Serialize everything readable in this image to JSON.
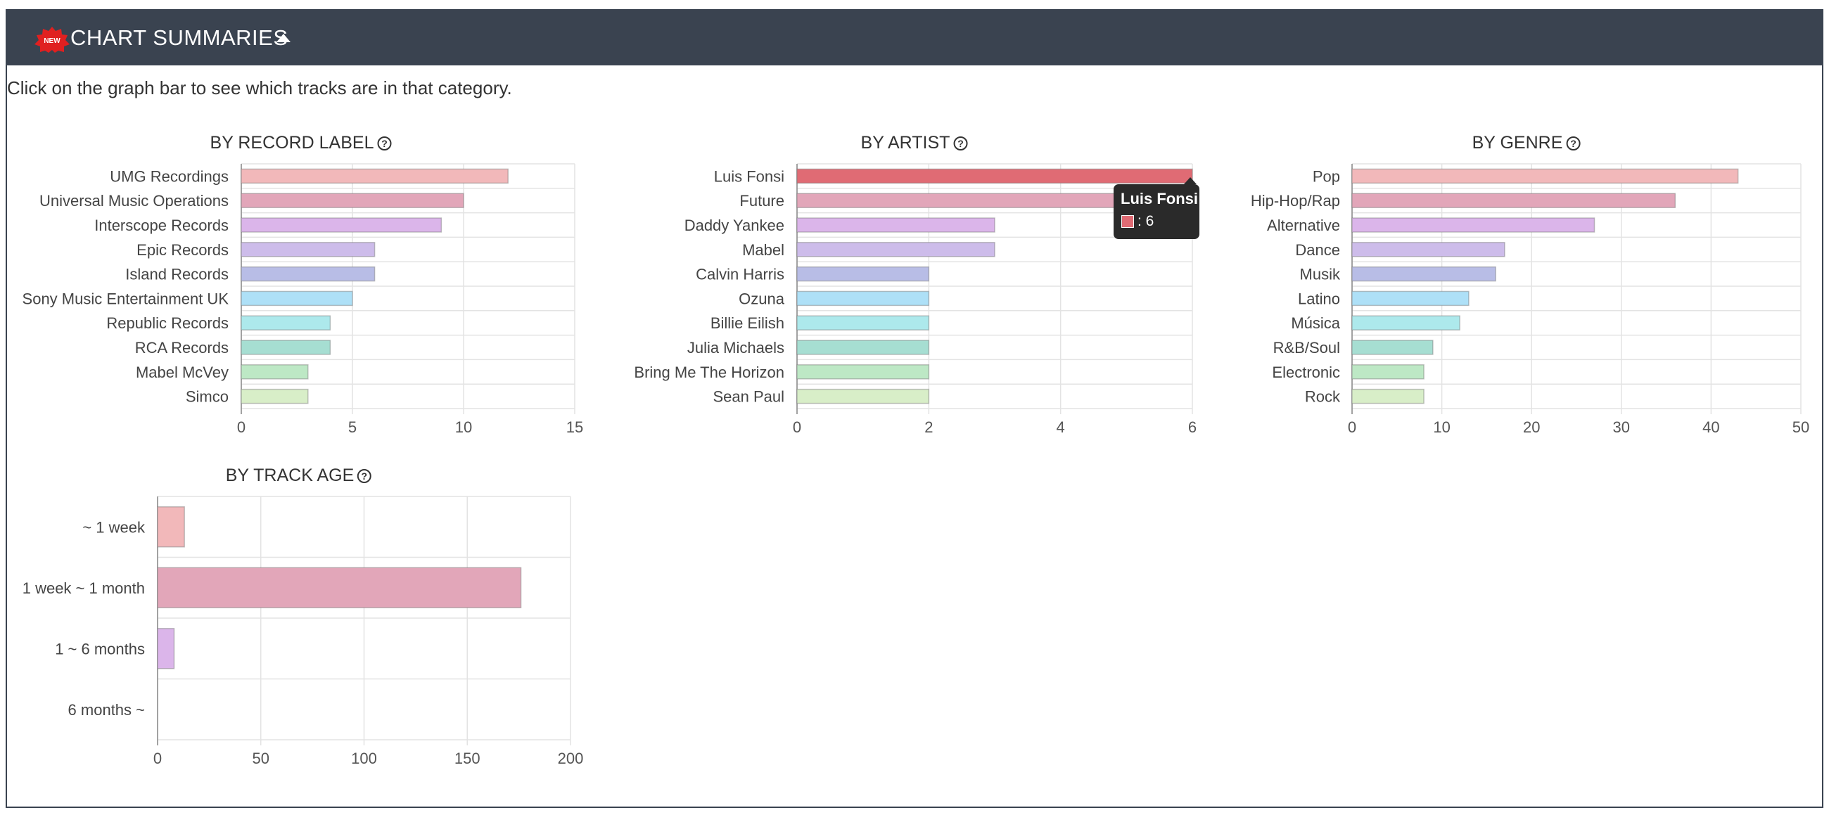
{
  "header": {
    "badge_text": "NEW",
    "title": "CHART SUMMARIES",
    "brand_color": "#3a4350"
  },
  "intro_text": "Click on the graph bar to see which tracks are in that category.",
  "tooltip": {
    "title": "Luis Fonsi",
    "value": ": 6"
  },
  "colors": [
    "#f2b8ba",
    "#e2a6b9",
    "#dbb5ea",
    "#cdbcea",
    "#b8bde6",
    "#aee0f7",
    "#ade9ec",
    "#a6ded2",
    "#bde8c5",
    "#d8eec8"
  ],
  "highlight_color": "#e06b74",
  "chart_data": [
    {
      "type": "bar",
      "orientation": "horizontal",
      "title": "BY RECORD LABEL",
      "categories": [
        "UMG Recordings",
        "Universal Music Operations",
        "Interscope Records",
        "Epic Records",
        "Island Records",
        "Sony Music Entertainment UK",
        "Republic Records",
        "RCA Records",
        "Mabel McVey",
        "Simco"
      ],
      "values": [
        12,
        10,
        9,
        6,
        6,
        5,
        4,
        4,
        3,
        3
      ],
      "xlim": [
        0,
        15
      ],
      "xticks": [
        0,
        5,
        10,
        15
      ],
      "grid": true
    },
    {
      "type": "bar",
      "orientation": "horizontal",
      "title": "BY ARTIST",
      "categories": [
        "Luis Fonsi",
        "Future",
        "Daddy Yankee",
        "Mabel",
        "Calvin Harris",
        "Ozuna",
        "Billie Eilish",
        "Julia Michaels",
        "Bring Me The Horizon",
        "Sean Paul"
      ],
      "values": [
        6,
        6,
        3,
        3,
        2,
        2,
        2,
        2,
        2,
        2
      ],
      "xlim": [
        0,
        6
      ],
      "xticks": [
        0,
        2,
        4,
        6
      ],
      "grid": true,
      "highlighted_index": 0
    },
    {
      "type": "bar",
      "orientation": "horizontal",
      "title": "BY GENRE",
      "categories": [
        "Pop",
        "Hip-Hop/Rap",
        "Alternative",
        "Dance",
        "Musik",
        "Latino",
        "Música",
        "R&B/Soul",
        "Electronic",
        "Rock"
      ],
      "values": [
        43,
        36,
        27,
        17,
        16,
        13,
        12,
        9,
        8,
        8
      ],
      "xlim": [
        0,
        50
      ],
      "xticks": [
        0,
        10,
        20,
        30,
        40,
        50
      ],
      "grid": true
    },
    {
      "type": "bar",
      "orientation": "horizontal",
      "title": "BY TRACK AGE",
      "categories": [
        "~ 1 week",
        "1 week ~ 1 month",
        "1 ~ 6 months",
        "6 months ~"
      ],
      "values": [
        13,
        176,
        8,
        0
      ],
      "xlim": [
        0,
        200
      ],
      "xticks": [
        0,
        50,
        100,
        150,
        200
      ],
      "grid": true
    }
  ]
}
